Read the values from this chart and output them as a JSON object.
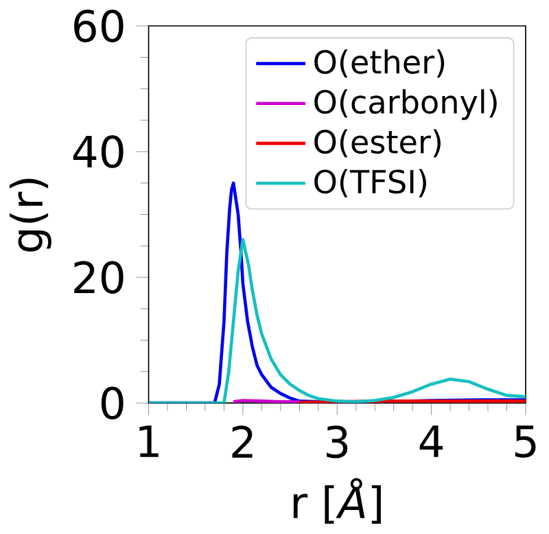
{
  "chart_data": {
    "type": "line",
    "xlabel": "r [*Å*]",
    "ylabel": "g(r)",
    "xlim": [
      1,
      5
    ],
    "ylim": [
      0,
      60
    ],
    "xticks": [
      1,
      2,
      3,
      4,
      5
    ],
    "yticks": [
      0,
      20,
      40,
      60
    ],
    "legend": "top right",
    "grid": false,
    "marker": "none",
    "line_style": "solid",
    "series": [
      {
        "name": "O(ether)",
        "color": "#0000ee",
        "x": [
          1.0,
          1.6,
          1.7,
          1.75,
          1.8,
          1.83,
          1.86,
          1.88,
          1.9,
          1.92,
          1.95,
          1.98,
          2.0,
          2.05,
          2.1,
          2.15,
          2.2,
          2.3,
          2.4,
          2.5,
          2.6,
          2.8,
          3.0,
          3.5,
          4.0,
          4.5,
          5.0
        ],
        "values": [
          0,
          0,
          0,
          3,
          13,
          24,
          31,
          34,
          35,
          33,
          30,
          24,
          19,
          13,
          9,
          6,
          4.5,
          2.5,
          1.5,
          0.8,
          0.3,
          null,
          0.1,
          0.2,
          0.4,
          0.5,
          0.5
        ]
      },
      {
        "name": "O(carbonyl)",
        "color": "#cc00cc",
        "x": [
          1.9,
          2.0,
          2.2,
          2.4,
          2.6
        ],
        "values": [
          0.2,
          0.4,
          0.3,
          0.2,
          0.2
        ]
      },
      {
        "name": "O(ester)",
        "color": "#ee0000",
        "x": [
          2.6,
          3.0,
          3.5,
          4.0,
          4.5,
          5.0
        ],
        "values": [
          0.1,
          0.2,
          0.3,
          0.3,
          0.3,
          0.3
        ]
      },
      {
        "name": "O(TFSI)",
        "color": "#17bfbf",
        "x": [
          1.0,
          1.7,
          1.8,
          1.85,
          1.9,
          1.95,
          2.0,
          2.03,
          2.06,
          2.1,
          2.15,
          2.2,
          2.3,
          2.4,
          2.5,
          2.6,
          2.7,
          2.8,
          3.0,
          3.2,
          3.4,
          3.6,
          3.8,
          4.0,
          4.2,
          4.3,
          4.4,
          4.6,
          4.8,
          5.0
        ],
        "values": [
          0,
          0,
          0,
          5,
          13,
          21,
          26,
          24,
          22,
          18,
          14,
          11,
          7,
          4.5,
          3,
          2,
          1.2,
          0.7,
          0.3,
          0.2,
          0.4,
          0.9,
          1.8,
          3,
          3.8,
          3.6,
          3.4,
          2.2,
          1.2,
          1.0
        ]
      }
    ]
  }
}
